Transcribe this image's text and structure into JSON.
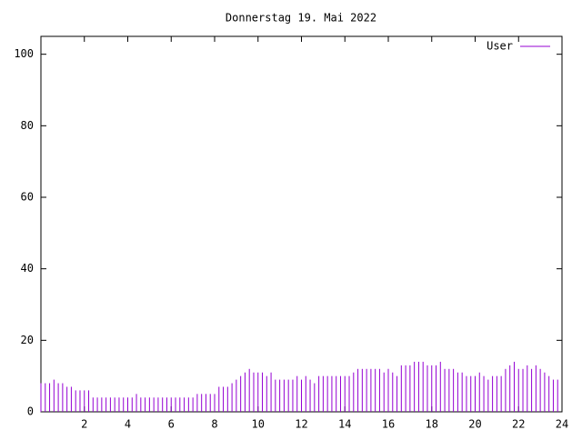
{
  "chart_data": {
    "type": "impulses",
    "title": "Donnerstag 19. Mai 2022",
    "xlim": [
      0,
      24
    ],
    "xticks": [
      2,
      4,
      6,
      8,
      10,
      12,
      14,
      16,
      18,
      20,
      22,
      24
    ],
    "ylim": [
      0,
      105
    ],
    "yticks": [
      0,
      20,
      40,
      60,
      80,
      100
    ],
    "grid": false,
    "legend": "top-right",
    "x": [
      0,
      0.2,
      0.4,
      0.6,
      0.8,
      1,
      1.2,
      1.4,
      1.6,
      1.8,
      2,
      2.2,
      2.4,
      2.6,
      2.8,
      3,
      3.2,
      3.4,
      3.6,
      3.8,
      4,
      4.2,
      4.4,
      4.6,
      4.8,
      5,
      5.2,
      5.4,
      5.6,
      5.8,
      6,
      6.2,
      6.4,
      6.6,
      6.8,
      7,
      7.2,
      7.4,
      7.6,
      7.8,
      8,
      8.2,
      8.4,
      8.6,
      8.8,
      9,
      9.2,
      9.4,
      9.6,
      9.8,
      10,
      10.2,
      10.4,
      10.6,
      10.8,
      11,
      11.2,
      11.4,
      11.6,
      11.8,
      12,
      12.2,
      12.4,
      12.6,
      12.8,
      13,
      13.2,
      13.4,
      13.6,
      13.8,
      14,
      14.2,
      14.4,
      14.6,
      14.8,
      15,
      15.2,
      15.4,
      15.6,
      15.8,
      16,
      16.2,
      16.4,
      16.6,
      16.8,
      17,
      17.2,
      17.4,
      17.6,
      17.8,
      18,
      18.2,
      18.4,
      18.6,
      18.8,
      19,
      19.2,
      19.4,
      19.6,
      19.8,
      20,
      20.2,
      20.4,
      20.6,
      20.8,
      21,
      21.2,
      21.4,
      21.6,
      21.8,
      22,
      22.2,
      22.4,
      22.6,
      22.8,
      23,
      23.2,
      23.4,
      23.6,
      23.8
    ],
    "series": [
      {
        "name": "User",
        "color": "#9400d3",
        "values": [
          8,
          8,
          8,
          9,
          8,
          8,
          7,
          7,
          6,
          6,
          6,
          6,
          4,
          4,
          4,
          4,
          4,
          4,
          4,
          4,
          4,
          4,
          5,
          4,
          4,
          4,
          4,
          4,
          4,
          4,
          4,
          4,
          4,
          4,
          4,
          4,
          5,
          5,
          5,
          5,
          5,
          7,
          7,
          7,
          8,
          9,
          10,
          11,
          12,
          11,
          11,
          11,
          10,
          11,
          9,
          9,
          9,
          9,
          9,
          10,
          9,
          10,
          9,
          8,
          10,
          10,
          10,
          10,
          10,
          10,
          10,
          10,
          11,
          12,
          12,
          12,
          12,
          12,
          12,
          11,
          12,
          11,
          10,
          13,
          13,
          13,
          14,
          14,
          14,
          13,
          13,
          13,
          14,
          12,
          12,
          12,
          11,
          11,
          10,
          10,
          10,
          11,
          10,
          9,
          10,
          10,
          10,
          12,
          13,
          14,
          12,
          12,
          13,
          12,
          13,
          12,
          11,
          10,
          9,
          9
        ]
      }
    ]
  }
}
